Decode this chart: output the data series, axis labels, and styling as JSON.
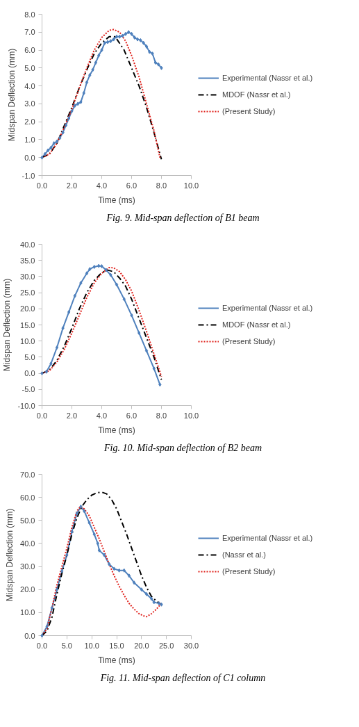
{
  "chart_data": [
    {
      "type": "line",
      "xlabel": "Time (ms)",
      "ylabel": "Midspan Deflection (mm)",
      "legend": "right",
      "grid": false,
      "xlim": [
        0,
        10
      ],
      "xticks": [
        {
          "value": 0,
          "label": "0.0"
        },
        {
          "value": 2,
          "label": "2.0"
        },
        {
          "value": 4,
          "label": "4.0"
        },
        {
          "value": 6,
          "label": "6.0"
        },
        {
          "value": 8,
          "label": "8.0"
        },
        {
          "value": 10,
          "label": "10.0"
        }
      ],
      "ylim": [
        -1,
        8
      ],
      "yticks": [
        {
          "value": -1,
          "label": "-1.0"
        },
        {
          "value": 0,
          "label": "0.0"
        },
        {
          "value": 1,
          "label": "1.0"
        },
        {
          "value": 2,
          "label": "2.0"
        },
        {
          "value": 3,
          "label": "3.0"
        },
        {
          "value": 4,
          "label": "4.0"
        },
        {
          "value": 5,
          "label": "5.0"
        },
        {
          "value": 6,
          "label": "6.0"
        },
        {
          "value": 7,
          "label": "7.0"
        },
        {
          "value": 8,
          "label": "8.0"
        }
      ],
      "annotations": [
        "Fig. 9. Mid-span deflection of B1 beam"
      ],
      "series": [
        {
          "name": "Experimental (Nassr et al.)",
          "color": "#4f81bd",
          "marker": "diamond",
          "line_style": "solid",
          "x": [
            0,
            0.2,
            0.4,
            0.6,
            0.8,
            1.0,
            1.2,
            1.4,
            1.6,
            1.8,
            2.0,
            2.2,
            2.4,
            2.6,
            2.8,
            3.0,
            3.2,
            3.4,
            3.6,
            3.8,
            4.0,
            4.2,
            4.4,
            4.6,
            4.8,
            5.0,
            5.2,
            5.4,
            5.6,
            5.8,
            6.0,
            6.2,
            6.4,
            6.6,
            6.8,
            7.0,
            7.2,
            7.4,
            7.6,
            7.8,
            8.0
          ],
          "values": [
            0,
            0.2,
            0.4,
            0.55,
            0.8,
            0.9,
            1.1,
            1.4,
            1.8,
            2.2,
            2.6,
            2.9,
            3.0,
            3.1,
            3.6,
            4.2,
            4.6,
            4.9,
            5.3,
            5.7,
            6.0,
            6.4,
            6.45,
            6.5,
            6.6,
            6.75,
            6.75,
            6.8,
            6.9,
            7.0,
            6.9,
            6.7,
            6.6,
            6.55,
            6.4,
            6.2,
            5.9,
            5.8,
            5.3,
            5.2,
            5.0
          ]
        },
        {
          "name": "MDOF (Nassr et al.)",
          "color": "#000000",
          "marker": "none",
          "line_style": "dashed",
          "x": [
            0,
            0.5,
            1.0,
            1.5,
            2.0,
            2.5,
            3.0,
            3.5,
            4.0,
            4.5,
            4.9,
            5.5,
            6.0,
            6.5,
            7.0,
            7.5,
            8.0
          ],
          "values": [
            0,
            0.2,
            0.8,
            1.8,
            2.8,
            3.9,
            4.9,
            5.8,
            6.4,
            6.75,
            6.75,
            6.0,
            5.0,
            4.0,
            2.8,
            1.4,
            -0.1
          ]
        },
        {
          "name": "(Present Study)",
          "color": "#e0201b",
          "marker": "none",
          "line_style": "dotted",
          "x": [
            0,
            0.5,
            1.0,
            1.5,
            2.0,
            2.5,
            3.0,
            3.5,
            4.0,
            4.5,
            4.8,
            5.2,
            5.6,
            6.0,
            6.5,
            7.0,
            7.5,
            7.9
          ],
          "values": [
            0,
            0.2,
            0.8,
            1.7,
            2.7,
            3.9,
            5.0,
            6.0,
            6.7,
            7.1,
            7.15,
            7.0,
            6.5,
            5.7,
            4.5,
            3.0,
            1.5,
            0.0
          ]
        }
      ]
    },
    {
      "type": "line",
      "xlabel": "Time (ms)",
      "ylabel": "Midspan Deflection (mm)",
      "legend": "right",
      "grid": false,
      "xlim": [
        0,
        10
      ],
      "xticks": [
        {
          "value": 0,
          "label": "0.0"
        },
        {
          "value": 2,
          "label": "2.0"
        },
        {
          "value": 4,
          "label": "4.0"
        },
        {
          "value": 6,
          "label": "6.0"
        },
        {
          "value": 8,
          "label": "8.0"
        },
        {
          "value": 10,
          "label": "10.0"
        }
      ],
      "ylim": [
        -10,
        40
      ],
      "yticks": [
        {
          "value": -10,
          "label": "-10.0"
        },
        {
          "value": -5,
          "label": "-5.0"
        },
        {
          "value": 0,
          "label": "0.0"
        },
        {
          "value": 5,
          "label": "5.0"
        },
        {
          "value": 10,
          "label": "10.0"
        },
        {
          "value": 15,
          "label": "15.0"
        },
        {
          "value": 20,
          "label": "20.0"
        },
        {
          "value": 25,
          "label": "25.0"
        },
        {
          "value": 30,
          "label": "30.0"
        },
        {
          "value": 35,
          "label": "35.0"
        },
        {
          "value": 40,
          "label": "40.0"
        }
      ],
      "annotations": [
        "Fig. 10. Mid-span deflection of B2 beam"
      ],
      "series": [
        {
          "name": "Experimental (Nassr et al.)",
          "color": "#4f81bd",
          "marker": "diamond",
          "line_style": "solid",
          "x": [
            0,
            0.3,
            0.6,
            1.0,
            1.4,
            1.8,
            2.2,
            2.6,
            3.0,
            3.2,
            3.5,
            3.8,
            4.0,
            4.3,
            4.6,
            5.0,
            5.5,
            6.0,
            6.5,
            7.0,
            7.5,
            7.9
          ],
          "values": [
            0,
            0.5,
            3,
            8,
            14,
            19,
            24,
            28,
            31,
            32.3,
            33,
            33.3,
            33.2,
            32,
            30.5,
            27.5,
            23,
            18,
            12.5,
            7,
            1.5,
            -3.5
          ]
        },
        {
          "name": "MDOF (Nassr et al.)",
          "color": "#000000",
          "marker": "none",
          "line_style": "dashed",
          "x": [
            0,
            0.5,
            1.0,
            1.5,
            2.0,
            2.5,
            3.0,
            3.5,
            4.0,
            4.4,
            4.8,
            5.2,
            5.6,
            6.0,
            6.5,
            7.0,
            7.5,
            8.0
          ],
          "values": [
            0,
            1,
            4,
            8.5,
            14,
            20,
            25,
            28.8,
            31.2,
            32,
            31.5,
            29.5,
            27,
            23,
            17,
            11,
            5,
            -2
          ]
        },
        {
          "name": "(Present Study)",
          "color": "#e0201b",
          "marker": "none",
          "line_style": "dotted",
          "x": [
            0,
            0.5,
            1.0,
            1.5,
            2.0,
            2.5,
            3.0,
            3.5,
            4.0,
            4.5,
            4.8,
            5.2,
            5.6,
            6.0,
            6.5,
            7.0,
            7.5,
            8.0
          ],
          "values": [
            0,
            0.8,
            3.5,
            7.5,
            12.5,
            18,
            23.5,
            28,
            31,
            32.8,
            32.7,
            31.5,
            29,
            25.5,
            19.5,
            13,
            6,
            -1
          ]
        }
      ]
    },
    {
      "type": "line",
      "xlabel": "Time (ms)",
      "ylabel": "Midspan Deflection (mm)",
      "legend": "right",
      "grid": false,
      "xlim": [
        0,
        30
      ],
      "xticks": [
        {
          "value": 0,
          "label": "0.0"
        },
        {
          "value": 5,
          "label": "5.0"
        },
        {
          "value": 10,
          "label": "10.0"
        },
        {
          "value": 15,
          "label": "15.0"
        },
        {
          "value": 20,
          "label": "20.0"
        },
        {
          "value": 25,
          "label": "25.0"
        },
        {
          "value": 30,
          "label": "30.0"
        }
      ],
      "ylim": [
        0,
        70
      ],
      "yticks": [
        {
          "value": 0,
          "label": "0.0"
        },
        {
          "value": 10,
          "label": "10.0"
        },
        {
          "value": 20,
          "label": "20.0"
        },
        {
          "value": 30,
          "label": "30.0"
        },
        {
          "value": 40,
          "label": "40.0"
        },
        {
          "value": 50,
          "label": "50.0"
        },
        {
          "value": 60,
          "label": "60.0"
        },
        {
          "value": 70,
          "label": "70.0"
        }
      ],
      "annotations": [
        "Fig. 11. Mid-span deflection of C1 column"
      ],
      "series": [
        {
          "name": "Experimental (Nassr et al.)",
          "color": "#4f81bd",
          "marker": "diamond",
          "line_style": "solid",
          "x": [
            0,
            1,
            2,
            3,
            4,
            5,
            6,
            7,
            7.8,
            8.5,
            9.5,
            10.5,
            11.2,
            11.5,
            12.5,
            13.5,
            14.5,
            15.5,
            16.5,
            17.5,
            18.5,
            20,
            21,
            22,
            22.5,
            23.5,
            24
          ],
          "values": [
            0,
            4,
            12,
            20,
            28,
            35,
            45,
            53,
            56,
            54,
            49,
            44,
            40,
            37,
            35,
            31,
            29,
            28.3,
            28.3,
            26,
            23,
            20,
            18,
            16,
            14.5,
            14,
            13.5
          ]
        },
        {
          "name": "(Nassr et al.)",
          "color": "#000000",
          "marker": "none",
          "line_style": "dashed",
          "x": [
            0,
            1,
            2,
            3,
            4,
            5,
            6,
            7,
            8,
            9,
            10,
            11,
            12,
            13,
            14,
            15,
            16,
            17,
            18,
            19,
            20,
            21,
            22,
            23,
            24
          ],
          "values": [
            0,
            2,
            8,
            18,
            27,
            35,
            44,
            51,
            56,
            59,
            61,
            62,
            62.3,
            61.5,
            59,
            55,
            49.5,
            44,
            38,
            32,
            26,
            21,
            17,
            15,
            13.5
          ]
        },
        {
          "name": "(Present Study)",
          "color": "#e0201b",
          "marker": "none",
          "line_style": "dotted",
          "x": [
            0,
            1,
            2,
            3,
            4,
            5,
            6,
            7,
            7.7,
            8.5,
            9.5,
            10.5,
            11.5,
            12.5,
            13.5,
            14.5,
            15.5,
            16.5,
            17.5,
            18.5,
            19.5,
            20.5,
            21,
            22,
            23,
            24
          ],
          "values": [
            0,
            3,
            12,
            22,
            30,
            38,
            47,
            54,
            56,
            55,
            52,
            47,
            42,
            36.5,
            31,
            26,
            21.5,
            17.5,
            14,
            11.5,
            9.5,
            8.5,
            8.2,
            9.5,
            11.5,
            14
          ]
        }
      ]
    }
  ]
}
